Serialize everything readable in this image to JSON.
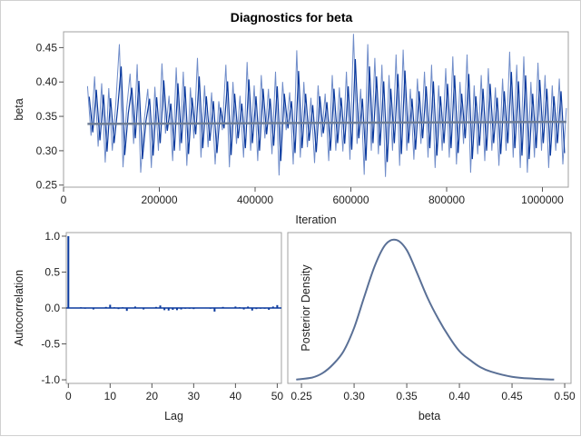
{
  "title": "Diagnostics for beta",
  "colors": {
    "trace": "#0b3a9e",
    "trace_light": "#6f8cc9",
    "mean_line": "#6e7d95",
    "acf": "#0b3a9e",
    "density": "#5a7096",
    "frame": "#a0a0a0"
  },
  "chart_data": [
    {
      "type": "line",
      "name": "trace",
      "xlabel": "Iteration",
      "ylabel": "beta",
      "xlim": [
        0,
        1054000
      ],
      "ylim": [
        0.247,
        0.473
      ],
      "xticks": [
        "0",
        "200000",
        "400000",
        "600000",
        "800000",
        "1000000"
      ],
      "xtick_values": [
        0,
        200000,
        400000,
        600000,
        800000,
        1000000
      ],
      "yticks": [
        "0.25",
        "0.30",
        "0.35",
        "0.40",
        "0.45"
      ],
      "ytick_values": [
        0.25,
        0.3,
        0.35,
        0.4,
        0.45
      ],
      "x_start": 50000,
      "x_end": 1050000,
      "mean_line": [
        [
          50000,
          0.339
        ],
        [
          1050000,
          0.342
        ]
      ],
      "values": [
        0.394,
        0.322,
        0.408,
        0.306,
        0.398,
        0.283,
        0.391,
        0.3,
        0.37,
        0.455,
        0.276,
        0.36,
        0.412,
        0.31,
        0.426,
        0.268,
        0.345,
        0.39,
        0.275,
        0.393,
        0.3,
        0.427,
        0.325,
        0.38,
        0.285,
        0.421,
        0.3,
        0.415,
        0.278,
        0.392,
        0.318,
        0.435,
        0.29,
        0.395,
        0.305,
        0.385,
        0.28,
        0.372,
        0.33,
        0.425,
        0.276,
        0.4,
        0.31,
        0.38,
        0.29,
        0.429,
        0.3,
        0.395,
        0.285,
        0.41,
        0.318,
        0.39,
        0.295,
        0.415,
        0.264,
        0.4,
        0.33,
        0.385,
        0.28,
        0.446,
        0.29,
        0.4,
        0.305,
        0.377,
        0.282,
        0.395,
        0.32,
        0.383,
        0.285,
        0.41,
        0.3,
        0.392,
        0.299,
        0.415,
        0.287,
        0.47,
        0.31,
        0.39,
        0.265,
        0.455,
        0.3,
        0.435,
        0.295,
        0.425,
        0.262,
        0.41,
        0.3,
        0.44,
        0.278,
        0.447,
        0.3,
        0.39,
        0.287,
        0.405,
        0.31,
        0.415,
        0.29,
        0.425,
        0.275,
        0.395,
        0.3,
        0.42,
        0.29,
        0.437,
        0.28,
        0.4,
        0.31,
        0.44,
        0.268,
        0.395,
        0.295,
        0.41,
        0.285,
        0.42,
        0.3,
        0.392,
        0.278,
        0.405,
        0.3,
        0.444,
        0.29,
        0.425,
        0.275,
        0.437,
        0.268,
        0.4,
        0.29,
        0.428,
        0.3,
        0.41,
        0.275,
        0.395,
        0.3,
        0.405,
        0.28,
        0.362
      ]
    },
    {
      "type": "bar",
      "name": "autocorrelation",
      "xlabel": "Lag",
      "ylabel": "Autocorrelation",
      "xlim": [
        -0.5,
        51
      ],
      "ylim": [
        -1.05,
        1.05
      ],
      "xticks": [
        "0",
        "10",
        "20",
        "30",
        "40",
        "50"
      ],
      "xtick_values": [
        0,
        10,
        20,
        30,
        40,
        50
      ],
      "yticks": [
        "-1.0",
        "-0.5",
        "0.0",
        "0.5",
        "1.0"
      ],
      "ytick_values": [
        -1.0,
        -0.5,
        0.0,
        0.5,
        1.0
      ],
      "values": [
        1.0,
        0.0,
        -0.005,
        0.01,
        -0.01,
        0.0,
        -0.02,
        0.0,
        0.0,
        0.015,
        0.045,
        0.01,
        -0.015,
        0.01,
        -0.04,
        0.0,
        0.02,
        0.0,
        -0.02,
        0.0,
        0.0,
        0.015,
        0.035,
        -0.03,
        -0.035,
        -0.025,
        -0.03,
        -0.02,
        -0.01,
        -0.01,
        -0.015,
        0.0,
        0.0,
        0.005,
        -0.01,
        -0.05,
        0.0,
        0.015,
        0.0,
        0.0,
        0.02,
        0.01,
        -0.02,
        0.02,
        -0.035,
        -0.015,
        -0.01,
        -0.01,
        -0.025,
        0.02,
        0.04
      ]
    },
    {
      "type": "line",
      "name": "posterior-density",
      "xlabel": "beta",
      "ylabel": "Posterior Density",
      "xlim": [
        0.237,
        0.506
      ],
      "ylim": [
        -0.2,
        10.1
      ],
      "xticks": [
        "0.25",
        "0.30",
        "0.35",
        "0.40",
        "0.45",
        "0.50"
      ],
      "xtick_values": [
        0.25,
        0.3,
        0.35,
        0.4,
        0.45,
        0.5
      ],
      "x": [
        0.245,
        0.26,
        0.27,
        0.28,
        0.29,
        0.3,
        0.31,
        0.32,
        0.33,
        0.34,
        0.35,
        0.36,
        0.37,
        0.38,
        0.39,
        0.4,
        0.41,
        0.42,
        0.43,
        0.45,
        0.47,
        0.49
      ],
      "y": [
        0.06,
        0.2,
        0.5,
        1.1,
        2.0,
        3.6,
        5.8,
        7.9,
        9.3,
        9.6,
        8.9,
        7.3,
        5.6,
        4.2,
        3.0,
        2.0,
        1.4,
        0.9,
        0.6,
        0.25,
        0.12,
        0.06
      ]
    }
  ]
}
